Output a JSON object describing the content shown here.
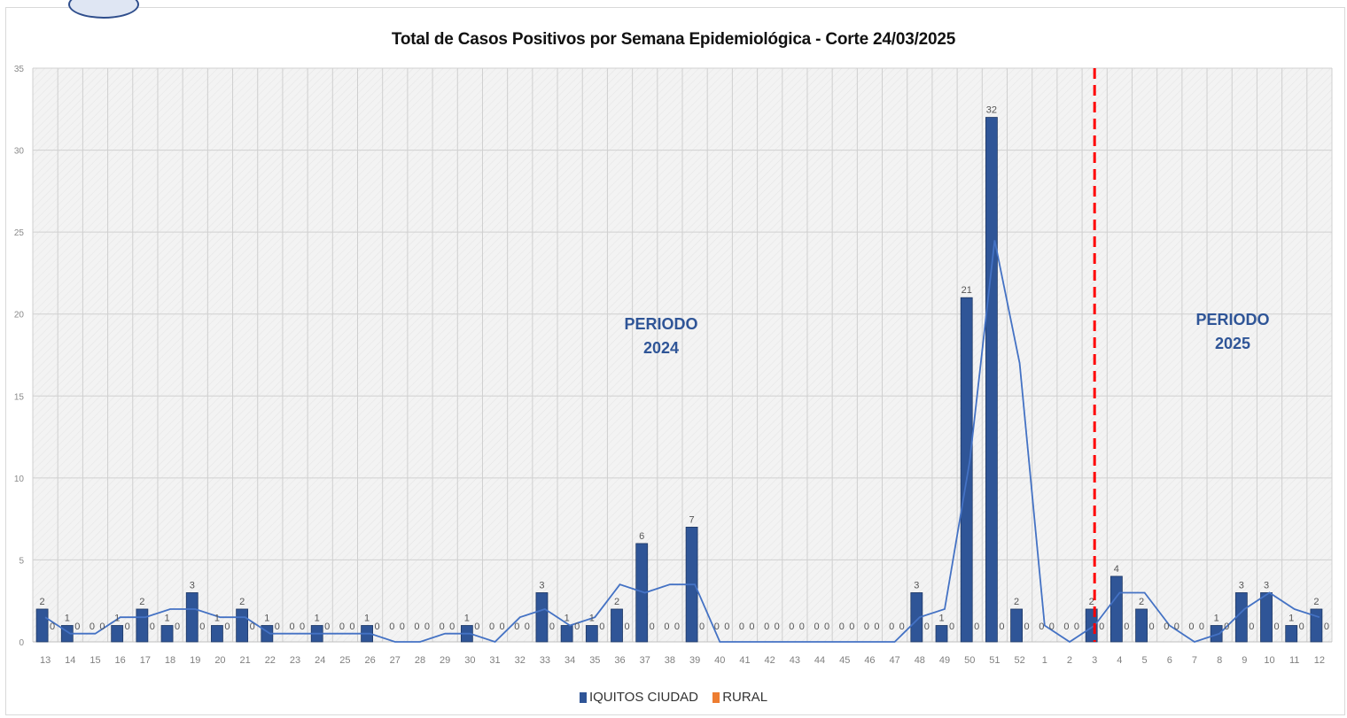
{
  "chart_data": {
    "type": "bar",
    "title": "Total de Casos Positivos por Semana Epidemiológica - Corte 24/03/2025",
    "xlabel": "",
    "ylabel": "",
    "ylim": [
      0,
      35
    ],
    "yticks": [
      0,
      5,
      10,
      15,
      20,
      25,
      30,
      35
    ],
    "grid": true,
    "legend_position": "bottom",
    "categories": [
      "13",
      "14",
      "15",
      "16",
      "17",
      "18",
      "19",
      "20",
      "21",
      "22",
      "23",
      "24",
      "25",
      "26",
      "27",
      "28",
      "29",
      "30",
      "31",
      "32",
      "33",
      "34",
      "35",
      "36",
      "37",
      "38",
      "39",
      "40",
      "41",
      "42",
      "43",
      "44",
      "45",
      "46",
      "47",
      "48",
      "49",
      "50",
      "51",
      "52",
      "1",
      "2",
      "3",
      "4",
      "5",
      "6",
      "7",
      "8",
      "9",
      "10",
      "11",
      "12"
    ],
    "series": [
      {
        "name": "IQUITOS CIUDAD",
        "color": "#2f5597",
        "values": [
          2,
          1,
          0,
          1,
          2,
          1,
          3,
          1,
          2,
          1,
          0,
          1,
          0,
          1,
          0,
          0,
          0,
          1,
          0,
          0,
          3,
          1,
          1,
          2,
          6,
          0,
          7,
          0,
          0,
          0,
          0,
          0,
          0,
          0,
          0,
          3,
          1,
          21,
          32,
          2,
          0,
          0,
          2,
          4,
          2,
          0,
          0,
          1,
          3,
          3,
          1,
          2
        ]
      },
      {
        "name": "RURAL",
        "color": "#ed7d31",
        "values": [
          0,
          0,
          0,
          0,
          0,
          0,
          0,
          0,
          0,
          0,
          0,
          0,
          0,
          0,
          0,
          0,
          0,
          0,
          0,
          0,
          0,
          0,
          0,
          0,
          0,
          0,
          0,
          0,
          0,
          0,
          0,
          0,
          0,
          0,
          0,
          0,
          0,
          0,
          0,
          0,
          0,
          0,
          0,
          0,
          0,
          0,
          0,
          0,
          0,
          0,
          0,
          0
        ]
      }
    ],
    "trend_line": {
      "color": "#4472c4",
      "values": [
        1.5,
        0.5,
        0.5,
        1.5,
        1.5,
        2,
        2,
        1.5,
        1.5,
        0.5,
        0.5,
        0.5,
        0.5,
        0.5,
        0,
        0,
        0.5,
        0.5,
        0,
        1.5,
        2,
        1,
        1.5,
        3.5,
        3,
        3.5,
        3.5,
        0,
        0,
        0,
        0,
        0,
        0,
        0,
        0,
        1.5,
        2,
        11,
        24.5,
        17,
        1,
        0,
        1,
        3,
        3,
        1,
        0,
        0.5,
        2,
        3,
        2,
        1.5
      ]
    },
    "divider": {
      "after_category_index": 42,
      "color": "#ff0000",
      "style": "dashed"
    },
    "annotations": [
      {
        "text_lines": [
          "PERIODO",
          "2024"
        ],
        "color": "#2f5597"
      },
      {
        "text_lines": [
          "PERIODO",
          "2025"
        ],
        "color": "#2f5597"
      }
    ]
  }
}
